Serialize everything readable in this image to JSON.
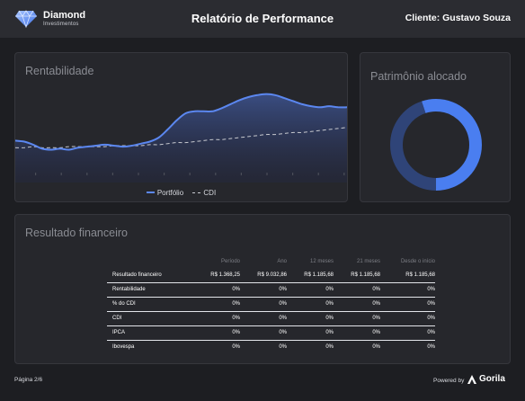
{
  "header": {
    "brand_name": "Diamond",
    "brand_sub": "Investimentos",
    "title": "Relatório de Performance",
    "client": "Cliente: Gustavo Souza"
  },
  "rentabilidade": {
    "title": "Rentabilidade",
    "legend": {
      "portfolio": "Portfólio",
      "cdi": "CDI"
    },
    "chart_data": {
      "type": "area",
      "title": "Rentabilidade",
      "x": [
        0,
        1,
        2,
        3,
        4,
        5,
        6,
        7,
        8,
        9,
        10,
        11,
        12,
        13,
        14,
        15,
        16,
        17,
        18,
        19,
        20,
        21,
        22,
        23,
        24,
        25,
        26,
        27,
        28,
        29,
        30,
        31,
        32,
        33,
        34,
        35,
        36,
        37
      ],
      "series": [
        {
          "name": "Portfólio",
          "values": [
            29,
            28,
            25,
            21,
            20,
            21,
            20,
            22,
            23,
            24,
            25,
            24,
            23,
            24,
            26,
            28,
            32,
            40,
            49,
            56,
            58,
            58,
            58,
            61,
            65,
            69,
            72,
            74,
            75,
            74,
            71,
            68,
            65,
            63,
            62,
            63,
            62,
            62
          ]
        },
        {
          "name": "CDI",
          "values": [
            22,
            22,
            23,
            22,
            22,
            22,
            23,
            23,
            23,
            23,
            23,
            24,
            24,
            24,
            24,
            25,
            25,
            26,
            27,
            27,
            28,
            29,
            30,
            30,
            31,
            32,
            33,
            34,
            35,
            35,
            36,
            37,
            37,
            38,
            39,
            40,
            41,
            42
          ]
        }
      ],
      "grid": false,
      "legend": "bottom-center",
      "colors": {
        "portfolio": "#5b87f0",
        "cdi": "#c7c9cf"
      }
    }
  },
  "patrimonio": {
    "title": "Patrimônio alocado",
    "chart_data": {
      "type": "pie",
      "values": [
        55,
        45
      ],
      "colors": [
        "#4a7ef0",
        "#2f4478"
      ]
    }
  },
  "resultado": {
    "title": "Resultado financeiro",
    "columns": [
      "",
      "Período",
      "Ano",
      "12 meses",
      "21 meses",
      "Desde o início"
    ],
    "rows": [
      [
        "Resultado financeiro",
        "R$ 1.368,25",
        "R$ 9.032,86",
        "R$ 1.185,68",
        "R$ 1.185,68",
        "R$ 1.185,68"
      ],
      [
        "Rentabilidade",
        "0%",
        "0%",
        "0%",
        "0%",
        "0%"
      ],
      [
        "% do CDI",
        "0%",
        "0%",
        "0%",
        "0%",
        "0%"
      ],
      [
        "CDI",
        "0%",
        "0%",
        "0%",
        "0%",
        "0%"
      ],
      [
        "IPCA",
        "0%",
        "0%",
        "0%",
        "0%",
        "0%"
      ],
      [
        "Ibovespa",
        "0%",
        "0%",
        "0%",
        "0%",
        "0%"
      ]
    ]
  },
  "footer": {
    "page": "Página 2/6",
    "powered_by": "Powered by",
    "partner": "Gorila"
  },
  "icons": {
    "logo": "diamond-icon",
    "partner": "gorila-logo-icon"
  }
}
